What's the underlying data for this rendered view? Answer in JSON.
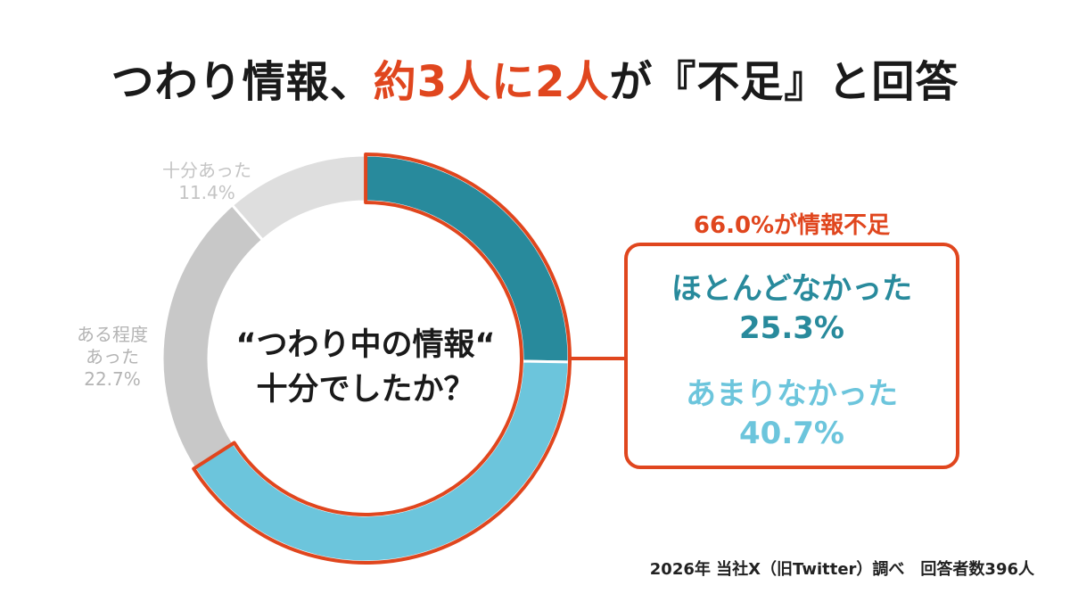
{
  "title": {
    "part1": "つわり情報、",
    "part2": "約3人に2人",
    "part3": "が『不足』と回答"
  },
  "chart_data": {
    "type": "pie",
    "center_line1": "“つわり中の情報“",
    "center_line2": "十分でしたか？",
    "slices": [
      {
        "label_lines": [
          "ほとんどなかった"
        ],
        "value": 25.3,
        "display": "25.3%",
        "color": "#288a9c"
      },
      {
        "label_lines": [
          "あまりなかった"
        ],
        "value": 40.7,
        "display": "40.7%",
        "color": "#6cc5dc"
      },
      {
        "label_lines": [
          "ある程度",
          "あった"
        ],
        "value": 22.7,
        "display": "22.7%",
        "color": "#c8c8c8"
      },
      {
        "label_lines": [
          "十分あった"
        ],
        "value": 11.4,
        "display": "11.4%",
        "color": "#dedede"
      }
    ],
    "highlight_color": "#e0461e"
  },
  "callout": {
    "header": "66.0%が情報不足",
    "items": [
      {
        "label": "ほとんどなかった",
        "value": "25.3%"
      },
      {
        "label": "あまりなかった",
        "value": "40.7%"
      }
    ]
  },
  "footer": "2026年 当社X（旧Twitter）調べ　回答者数396人"
}
